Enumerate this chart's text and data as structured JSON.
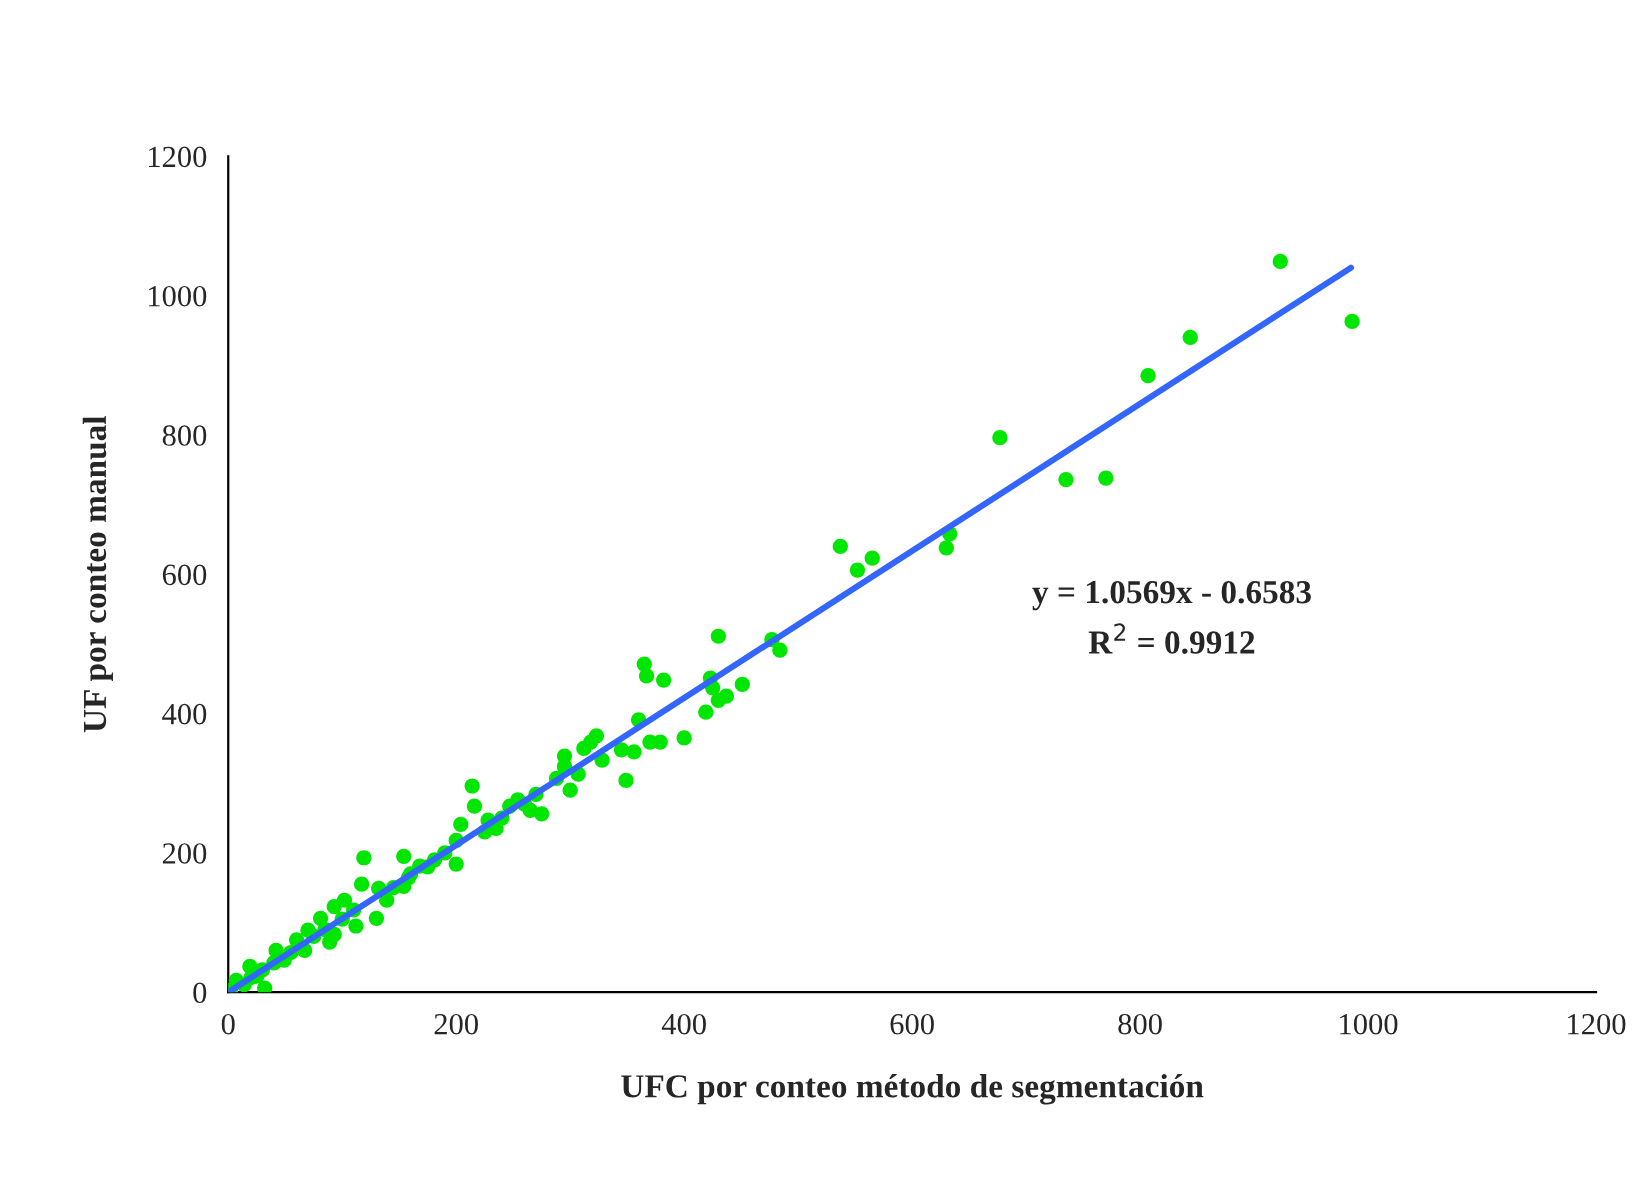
{
  "chart_data": {
    "type": "scatter",
    "xlabel": "UFC por conteo método de segmentación",
    "ylabel": "UF por conteo manual",
    "xlim": [
      0,
      1200
    ],
    "ylim": [
      0,
      1200
    ],
    "xticks": [
      0,
      200,
      400,
      600,
      800,
      1000,
      1200
    ],
    "yticks": [
      0,
      200,
      400,
      600,
      800,
      1000,
      1200
    ],
    "grid": false,
    "legend": false,
    "annotations": [
      "y = 1.0569x - 0.6583",
      "R$^{2}$ = 0.9912"
    ],
    "series": [
      {
        "color": "#00e600",
        "marker": "circle",
        "x": [
          923,
          986,
          844,
          807,
          735,
          770,
          677,
          537,
          552,
          565,
          630,
          633,
          430,
          477,
          484,
          365,
          367,
          382,
          423,
          425,
          451,
          430,
          437,
          419,
          360,
          400,
          370,
          379,
          345,
          356,
          349,
          328,
          323,
          318,
          312,
          295,
          295,
          307,
          300,
          214,
          216,
          204,
          200,
          200,
          228,
          235,
          247,
          254,
          265,
          275,
          270,
          288,
          119,
          154,
          117,
          132,
          139,
          130,
          154,
          168,
          181,
          158,
          93,
          81,
          93,
          70,
          60,
          42,
          32,
          19,
          7,
          2,
          102,
          89,
          112,
          67,
          49,
          25,
          14,
          20,
          30,
          40,
          55,
          75,
          85,
          100,
          110,
          145,
          160,
          175,
          190,
          225,
          240,
          260
        ],
        "values": [
          1049,
          963,
          940,
          885,
          736,
          738,
          796,
          640,
          606,
          623,
          638,
          658,
          511,
          506,
          491,
          471,
          454,
          448,
          451,
          437,
          442,
          419,
          425,
          402,
          391,
          365,
          359,
          359,
          348,
          345,
          304,
          333,
          368,
          359,
          350,
          339,
          324,
          313,
          290,
          296,
          267,
          241,
          218,
          184,
          247,
          235,
          267,
          276,
          261,
          256,
          284,
          307,
          193,
          195,
          155,
          149,
          132,
          106,
          152,
          181,
          190,
          164,
          123,
          106,
          83,
          89,
          75,
          60,
          6,
          37,
          17,
          3,
          132,
          72,
          95,
          60,
          46,
          23,
          11,
          21,
          32,
          42,
          57,
          80,
          90,
          105,
          118,
          150,
          170,
          180,
          200,
          230,
          250,
          270
        ]
      },
      {
        "type": "line",
        "color": "#3366ff",
        "marker": "none",
        "line_style": "solid",
        "x": [
          0,
          985
        ],
        "values": [
          0,
          1040
        ]
      }
    ]
  }
}
